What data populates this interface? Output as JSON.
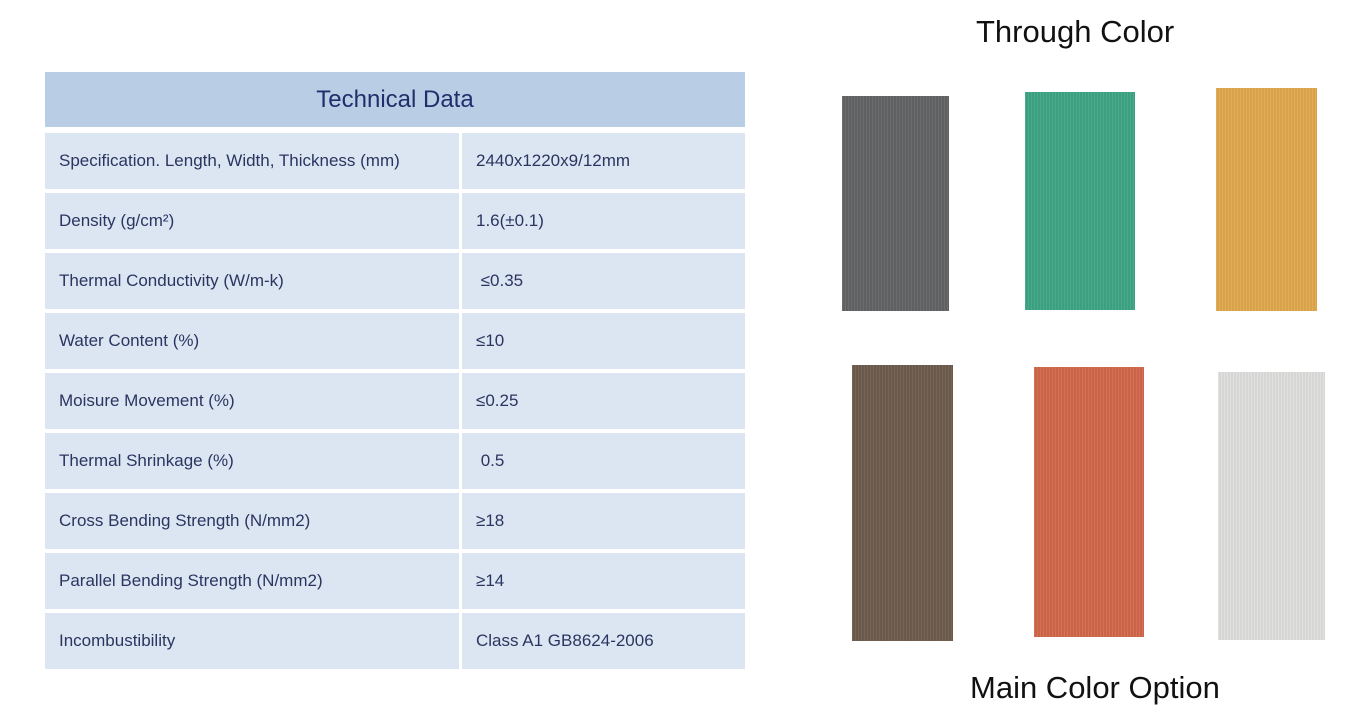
{
  "table": {
    "title": "Technical Data",
    "rows": [
      {
        "label": "Specification. Length, Width, Thickness (mm)",
        "value": "2440x1220x9/12mm"
      },
      {
        "label": "Density (g/cm²)",
        "value": "1.6(±0.1)"
      },
      {
        "label": "Thermal Conductivity (W/m-k)",
        "value": " ≤0.35"
      },
      {
        "label": "Water Content (%)",
        "value": "≤10"
      },
      {
        "label": "Moisure Movement (%)",
        "value": "≤0.25"
      },
      {
        "label": "Thermal Shrinkage (%)",
        "value": " 0.5"
      },
      {
        "label": "Cross Bending Strength (N/mm2)",
        "value": "≥18"
      },
      {
        "label": "Parallel Bending Strength (N/mm2)",
        "value": "≥14"
      },
      {
        "label": "Incombustibility",
        "value": "Class A1 GB8624-2006"
      }
    ]
  },
  "colors": {
    "top_title": "Through Color",
    "bottom_title": "Main Color Option",
    "swatches": [
      "#626466",
      "#3ea585",
      "#e0a84c",
      "#6e5d4d",
      "#d3674b",
      "#dfe0de"
    ]
  }
}
